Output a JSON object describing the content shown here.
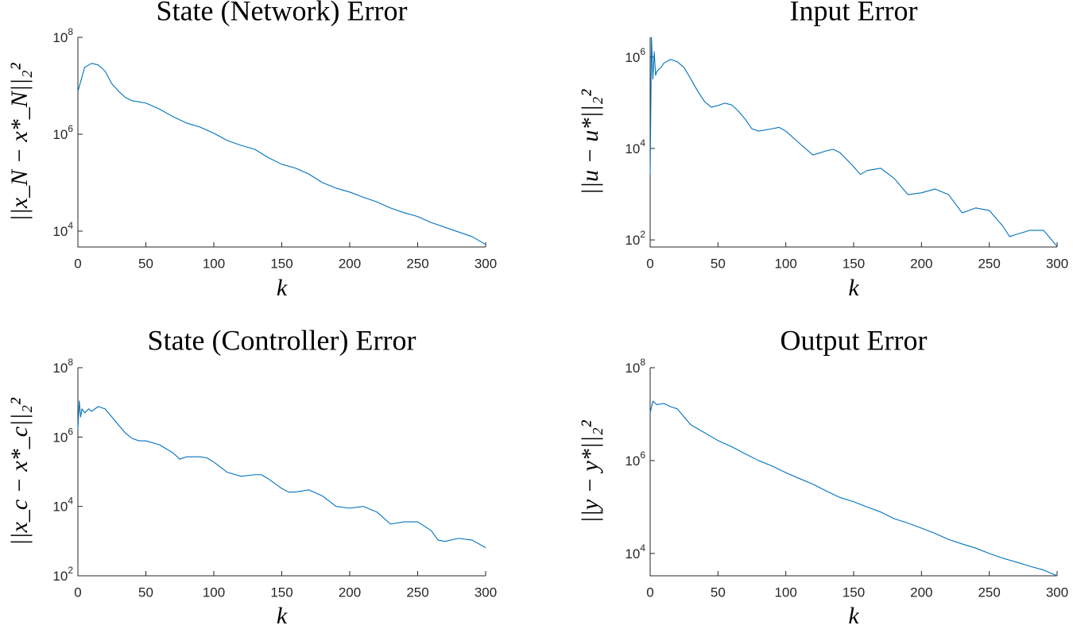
{
  "chart_data": [
    {
      "type": "line",
      "title": "State (Network) Error",
      "xlabel": "k",
      "ylabel": "||x_N − x*_N||₂²",
      "log_y": true,
      "color": "#0072bd",
      "x": [
        0,
        5,
        10,
        15,
        20,
        25,
        30,
        35,
        40,
        50,
        60,
        70,
        80,
        90,
        100,
        110,
        120,
        130,
        140,
        150,
        160,
        170,
        180,
        190,
        200,
        210,
        220,
        230,
        240,
        250,
        260,
        270,
        280,
        290,
        300
      ],
      "values": [
        7700000,
        24000000,
        29000000,
        27000000,
        20000000,
        11000000,
        7700000,
        5700000,
        4900000,
        4400000,
        3300000,
        2300000,
        1700000,
        1400000,
        1050000,
        740000,
        590000,
        490000,
        330000,
        240000,
        200000,
        150000,
        100000,
        77000,
        64000,
        50000,
        40000,
        30000,
        24000,
        20000,
        15000,
        12000,
        9600,
        7700,
        5300
      ],
      "xlim": [
        0,
        300
      ],
      "xticks": [
        0,
        50,
        100,
        150,
        200,
        250,
        300
      ],
      "ylim": [
        4700,
        100000000
      ],
      "yticks": [
        {
          "value": 10000,
          "label": "10",
          "exponent": "4"
        },
        {
          "value": 1000000,
          "label": "10",
          "exponent": "6"
        },
        {
          "value": 100000000,
          "label": "10",
          "exponent": "8"
        }
      ]
    },
    {
      "type": "line",
      "title": "Input Error",
      "xlabel": "k",
      "ylabel": "||u − u*||₂²",
      "log_y": true,
      "color": "#0072bd",
      "x": [
        0,
        1,
        2,
        3,
        4,
        5,
        8,
        10,
        15,
        20,
        25,
        30,
        35,
        40,
        45,
        50,
        55,
        60,
        65,
        70,
        75,
        80,
        90,
        95,
        100,
        110,
        120,
        130,
        135,
        140,
        150,
        155,
        160,
        170,
        180,
        190,
        200,
        210,
        220,
        230,
        240,
        250,
        260,
        265,
        270,
        280,
        290,
        300
      ],
      "values": [
        2700,
        2700000,
        330000,
        1300000,
        400000,
        490000,
        590000,
        730000,
        890000,
        790000,
        590000,
        330000,
        180000,
        107000,
        80000,
        87000,
        98000,
        90000,
        66000,
        44000,
        27000,
        24000,
        27000,
        29000,
        24000,
        13000,
        7200,
        8900,
        9600,
        8100,
        4000,
        2700,
        3300,
        3700,
        2200,
        980,
        1070,
        1300,
        980,
        390,
        500,
        440,
        200,
        118,
        132,
        162,
        162,
        72
      ],
      "xlim": [
        0,
        300
      ],
      "xticks": [
        0,
        50,
        100,
        150,
        200,
        250,
        300
      ],
      "ylim": [
        70,
        2700000
      ],
      "yticks": [
        {
          "value": 100,
          "label": "10",
          "exponent": "2"
        },
        {
          "value": 10000,
          "label": "10",
          "exponent": "4"
        },
        {
          "value": 1000000,
          "label": "10",
          "exponent": "6"
        }
      ]
    },
    {
      "type": "line",
      "title": "State (Controller) Error",
      "xlabel": "k",
      "ylabel": "||x_c − x*_c||₂²",
      "log_y": true,
      "color": "#0072bd",
      "x": [
        0,
        1,
        2,
        3,
        5,
        8,
        10,
        15,
        20,
        25,
        30,
        35,
        40,
        45,
        50,
        60,
        70,
        75,
        80,
        90,
        95,
        100,
        110,
        120,
        130,
        135,
        140,
        150,
        155,
        160,
        170,
        180,
        190,
        200,
        210,
        220,
        230,
        240,
        250,
        260,
        265,
        270,
        280,
        290,
        300
      ],
      "values": [
        1700000,
        11000000,
        3800000,
        6500000,
        5000000,
        6500000,
        5500000,
        7600000,
        6500000,
        3800000,
        2200000,
        1300000,
        910000,
        780000,
        780000,
        600000,
        350000,
        230000,
        270000,
        270000,
        250000,
        190000,
        96000,
        74000,
        82000,
        82000,
        63000,
        33000,
        26000,
        26000,
        30000,
        20000,
        10000,
        8900,
        10000,
        6900,
        3100,
        3600,
        3600,
        2000,
        1070,
        980,
        1200,
        1070,
        650
      ],
      "xlim": [
        0,
        300
      ],
      "xticks": [
        0,
        50,
        100,
        150,
        200,
        250,
        300
      ],
      "ylim": [
        100,
        100000000
      ],
      "yticks": [
        {
          "value": 100,
          "label": "10",
          "exponent": "2"
        },
        {
          "value": 10000,
          "label": "10",
          "exponent": "4"
        },
        {
          "value": 1000000,
          "label": "10",
          "exponent": "6"
        },
        {
          "value": 100000000,
          "label": "10",
          "exponent": "8"
        }
      ]
    },
    {
      "type": "line",
      "title": "Output Error",
      "xlabel": "k",
      "ylabel": "||y − y*||₂²",
      "log_y": true,
      "color": "#0072bd",
      "x": [
        0,
        2,
        5,
        10,
        15,
        20,
        25,
        30,
        40,
        50,
        60,
        70,
        80,
        90,
        100,
        110,
        120,
        130,
        140,
        150,
        160,
        170,
        180,
        190,
        200,
        210,
        220,
        230,
        240,
        250,
        260,
        270,
        280,
        290,
        300
      ],
      "values": [
        10700000,
        19000000,
        16000000,
        17000000,
        14500000,
        13000000,
        8700000,
        5900000,
        4000000,
        2700000,
        2000000,
        1400000,
        1000000,
        760000,
        550000,
        410000,
        310000,
        220000,
        160000,
        130000,
        100000,
        78000,
        56000,
        45000,
        35000,
        27000,
        20000,
        16000,
        13000,
        10000,
        7900,
        6500,
        5300,
        4400,
        3300
      ],
      "xlim": [
        0,
        300
      ],
      "xticks": [
        0,
        50,
        100,
        150,
        200,
        250,
        300
      ],
      "ylim": [
        3300,
        100000000
      ],
      "yticks": [
        {
          "value": 10000,
          "label": "10",
          "exponent": "4"
        },
        {
          "value": 1000000,
          "label": "10",
          "exponent": "6"
        },
        {
          "value": 100000000,
          "label": "10",
          "exponent": "8"
        }
      ]
    }
  ]
}
